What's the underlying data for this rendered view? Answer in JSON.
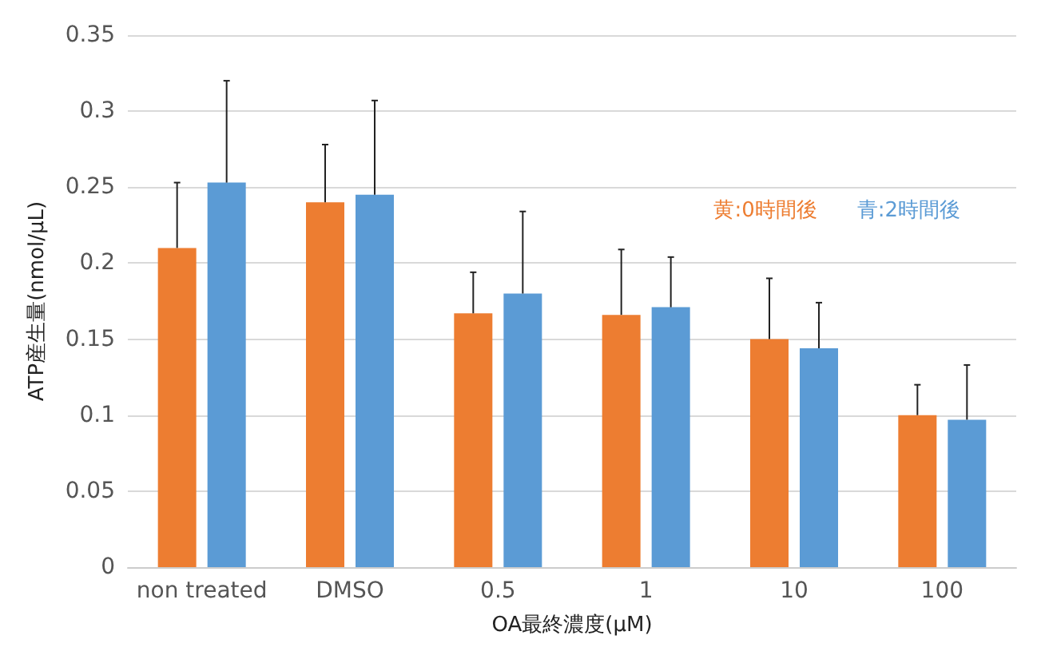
{
  "chart_data": {
    "type": "bar",
    "xlabel": "OA最終濃度(μM)",
    "ylabel": "ATP産生量(nmol/μL)",
    "categories": [
      "non treated",
      "DMSO",
      "0.5",
      "1",
      "10",
      "100"
    ],
    "series": [
      {
        "name": "黄:0時間後",
        "color": "#ed7d31",
        "values": [
          0.21,
          0.24,
          0.167,
          0.166,
          0.15,
          0.1
        ],
        "errors": [
          [
            0.21,
            0.253
          ],
          [
            0.24,
            0.278
          ],
          [
            0.167,
            0.194
          ],
          [
            0.166,
            0.209
          ],
          [
            0.15,
            0.19
          ],
          [
            0.1,
            0.12
          ]
        ]
      },
      {
        "name": "青:2時間後",
        "color": "#5b9bd5",
        "values": [
          0.253,
          0.245,
          0.18,
          0.171,
          0.144,
          0.097
        ],
        "errors": [
          [
            0.253,
            0.32
          ],
          [
            0.245,
            0.307
          ],
          [
            0.18,
            0.234
          ],
          [
            0.171,
            0.204
          ],
          [
            0.144,
            0.174
          ],
          [
            0.097,
            0.133
          ]
        ]
      }
    ],
    "ylim": [
      0,
      0.35
    ],
    "yticks": [
      0,
      0.05,
      0.1,
      0.15,
      0.2,
      0.25,
      0.3,
      0.35
    ],
    "grid": "y",
    "legend": "top right"
  }
}
